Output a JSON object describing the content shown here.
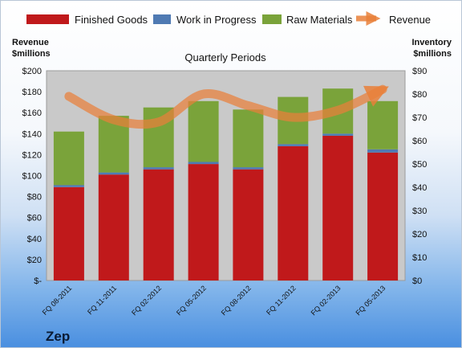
{
  "chart_data": {
    "type": "bar",
    "stacked": true,
    "title": "Quarterly Periods",
    "ylabel_left": [
      "Revenue",
      "$millions"
    ],
    "ylabel_right": [
      "Inventory",
      "$millions"
    ],
    "categories": [
      "FQ 08-2011",
      "FQ 11-2011",
      "FQ 02-2012",
      "FQ 05-2012",
      "FQ 08-2012",
      "FQ 11-2012",
      "FQ 02-2013",
      "FQ 05-2013"
    ],
    "left_axis": {
      "min": 0,
      "max": 200,
      "step": 20,
      "tick_labels": [
        "$-",
        "$20",
        "$40",
        "$60",
        "$80",
        "$100",
        "$120",
        "$140",
        "$160",
        "$180",
        "$200"
      ]
    },
    "right_axis": {
      "min": 0,
      "max": 90,
      "step": 10,
      "tick_labels": [
        "$0",
        "$10",
        "$20",
        "$30",
        "$40",
        "$50",
        "$60",
        "$70",
        "$80",
        "$90"
      ]
    },
    "series": [
      {
        "name": "Finished Goods",
        "axis": "left",
        "color": "#c0191b",
        "values": [
          89,
          101,
          106,
          111,
          106,
          128,
          138,
          122
        ]
      },
      {
        "name": "Work in Progress",
        "axis": "left",
        "color": "#4f7ab3",
        "values": [
          2,
          2,
          2,
          2,
          2,
          2,
          2,
          3
        ]
      },
      {
        "name": "Raw Materials",
        "axis": "left",
        "color": "#7aa33a",
        "values": [
          51,
          54,
          57,
          58,
          55,
          45,
          43,
          46
        ]
      },
      {
        "name": "Revenue",
        "axis": "right",
        "type": "line",
        "color": "#e9803a",
        "values": [
          79,
          69,
          68,
          80,
          75,
          70,
          73,
          82
        ]
      }
    ],
    "grid": false,
    "legend_position": "top"
  },
  "brand": "Zep"
}
